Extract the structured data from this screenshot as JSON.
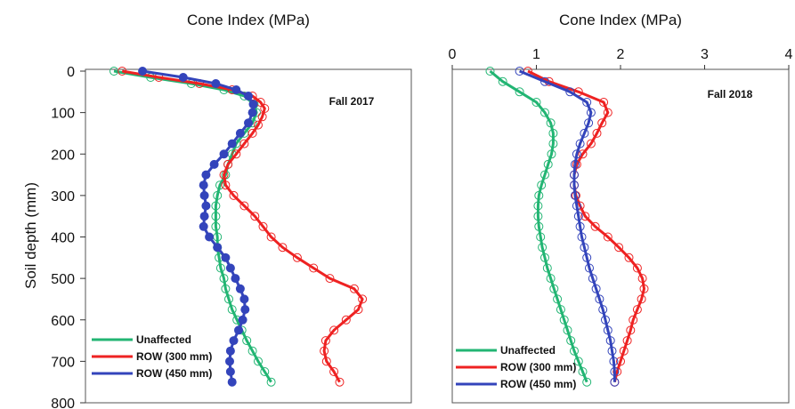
{
  "chart_data": [
    {
      "type": "line",
      "panel_label": "Fall 2017",
      "xlabel": "Cone Index (MPa)",
      "ylabel": "Soil depth (mm)",
      "y_ticks": [
        "0",
        "100",
        "200",
        "300",
        "400",
        "500",
        "600",
        "700",
        "800"
      ],
      "x_ticks": [],
      "xlim": [
        0,
        4
      ],
      "ylim": [
        0,
        800
      ],
      "y_inverted": true,
      "series": [
        {
          "name": "Unaffected",
          "color": "#22b573",
          "marker": "open-circle",
          "points": [
            [
              0.35,
              0
            ],
            [
              0.8,
              15
            ],
            [
              1.3,
              30
            ],
            [
              1.7,
              45
            ],
            [
              1.95,
              60
            ],
            [
              2.07,
              80
            ],
            [
              2.1,
              100
            ],
            [
              2.05,
              125
            ],
            [
              1.95,
              150
            ],
            [
              1.85,
              175
            ],
            [
              1.8,
              200
            ],
            [
              1.75,
              225
            ],
            [
              1.72,
              250
            ],
            [
              1.65,
              275
            ],
            [
              1.62,
              300
            ],
            [
              1.6,
              325
            ],
            [
              1.6,
              350
            ],
            [
              1.6,
              375
            ],
            [
              1.62,
              400
            ],
            [
              1.62,
              425
            ],
            [
              1.64,
              450
            ],
            [
              1.66,
              475
            ],
            [
              1.7,
              500
            ],
            [
              1.72,
              525
            ],
            [
              1.76,
              550
            ],
            [
              1.8,
              575
            ],
            [
              1.86,
              600
            ],
            [
              1.92,
              625
            ],
            [
              1.98,
              650
            ],
            [
              2.05,
              675
            ],
            [
              2.12,
              700
            ],
            [
              2.2,
              725
            ],
            [
              2.28,
              750
            ]
          ]
        },
        {
          "name": "ROW (300 mm)",
          "color": "#ee2222",
          "marker": "open-circle",
          "points": [
            [
              0.45,
              0
            ],
            [
              0.9,
              15
            ],
            [
              1.4,
              30
            ],
            [
              1.8,
              45
            ],
            [
              2.05,
              60
            ],
            [
              2.15,
              75
            ],
            [
              2.2,
              90
            ],
            [
              2.17,
              110
            ],
            [
              2.12,
              130
            ],
            [
              2.05,
              150
            ],
            [
              1.95,
              175
            ],
            [
              1.85,
              200
            ],
            [
              1.75,
              225
            ],
            [
              1.7,
              250
            ],
            [
              1.72,
              275
            ],
            [
              1.82,
              300
            ],
            [
              1.95,
              325
            ],
            [
              2.08,
              350
            ],
            [
              2.18,
              375
            ],
            [
              2.28,
              400
            ],
            [
              2.42,
              425
            ],
            [
              2.6,
              450
            ],
            [
              2.8,
              475
            ],
            [
              3.0,
              500
            ],
            [
              3.3,
              525
            ],
            [
              3.4,
              550
            ],
            [
              3.35,
              575
            ],
            [
              3.2,
              600
            ],
            [
              3.05,
              625
            ],
            [
              2.95,
              650
            ],
            [
              2.93,
              675
            ],
            [
              2.96,
              700
            ],
            [
              3.05,
              725
            ],
            [
              3.12,
              750
            ]
          ]
        },
        {
          "name": "ROW (450 mm)",
          "color": "#3344bb",
          "marker": "filled-circle",
          "points": [
            [
              0.7,
              0
            ],
            [
              1.2,
              15
            ],
            [
              1.6,
              30
            ],
            [
              1.85,
              45
            ],
            [
              2.0,
              60
            ],
            [
              2.06,
              80
            ],
            [
              2.05,
              100
            ],
            [
              2.0,
              125
            ],
            [
              1.9,
              150
            ],
            [
              1.8,
              175
            ],
            [
              1.7,
              200
            ],
            [
              1.58,
              225
            ],
            [
              1.48,
              250
            ],
            [
              1.45,
              275
            ],
            [
              1.46,
              300
            ],
            [
              1.48,
              325
            ],
            [
              1.46,
              350
            ],
            [
              1.45,
              375
            ],
            [
              1.52,
              400
            ],
            [
              1.62,
              425
            ],
            [
              1.72,
              450
            ],
            [
              1.78,
              475
            ],
            [
              1.84,
              500
            ],
            [
              1.9,
              525
            ],
            [
              1.95,
              550
            ],
            [
              1.96,
              575
            ],
            [
              1.93,
              600
            ],
            [
              1.88,
              625
            ],
            [
              1.82,
              650
            ],
            [
              1.78,
              675
            ],
            [
              1.77,
              700
            ],
            [
              1.78,
              725
            ],
            [
              1.8,
              750
            ]
          ]
        }
      ]
    },
    {
      "type": "line",
      "panel_label": "Fall 2018",
      "xlabel": "Cone Index (MPa)",
      "ylabel": "",
      "x_ticks": [
        "0",
        "1",
        "2",
        "3",
        "4"
      ],
      "y_ticks": [],
      "xlim": [
        0,
        4
      ],
      "ylim": [
        0,
        800
      ],
      "y_inverted": true,
      "series": [
        {
          "name": "Unaffected",
          "color": "#22b573",
          "marker": "open-circle",
          "points": [
            [
              0.45,
              0
            ],
            [
              0.6,
              25
            ],
            [
              0.8,
              50
            ],
            [
              1.0,
              75
            ],
            [
              1.1,
              100
            ],
            [
              1.17,
              125
            ],
            [
              1.2,
              150
            ],
            [
              1.2,
              175
            ],
            [
              1.18,
              200
            ],
            [
              1.14,
              225
            ],
            [
              1.1,
              250
            ],
            [
              1.06,
              275
            ],
            [
              1.03,
              300
            ],
            [
              1.02,
              325
            ],
            [
              1.02,
              350
            ],
            [
              1.03,
              375
            ],
            [
              1.05,
              400
            ],
            [
              1.07,
              425
            ],
            [
              1.1,
              450
            ],
            [
              1.13,
              475
            ],
            [
              1.17,
              500
            ],
            [
              1.21,
              525
            ],
            [
              1.25,
              550
            ],
            [
              1.29,
              575
            ],
            [
              1.33,
              600
            ],
            [
              1.37,
              625
            ],
            [
              1.41,
              650
            ],
            [
              1.45,
              675
            ],
            [
              1.5,
              700
            ],
            [
              1.55,
              725
            ],
            [
              1.6,
              750
            ]
          ]
        },
        {
          "name": "ROW (300 mm)",
          "color": "#ee2222",
          "marker": "open-circle",
          "points": [
            [
              0.9,
              0
            ],
            [
              1.15,
              25
            ],
            [
              1.5,
              50
            ],
            [
              1.8,
              75
            ],
            [
              1.85,
              100
            ],
            [
              1.78,
              125
            ],
            [
              1.72,
              150
            ],
            [
              1.65,
              175
            ],
            [
              1.55,
              200
            ],
            [
              1.48,
              225
            ],
            [
              1.45,
              250
            ],
            [
              1.45,
              275
            ],
            [
              1.47,
              300
            ],
            [
              1.52,
              325
            ],
            [
              1.58,
              350
            ],
            [
              1.7,
              375
            ],
            [
              1.85,
              400
            ],
            [
              1.98,
              425
            ],
            [
              2.1,
              450
            ],
            [
              2.2,
              475
            ],
            [
              2.26,
              500
            ],
            [
              2.28,
              525
            ],
            [
              2.25,
              550
            ],
            [
              2.2,
              575
            ],
            [
              2.15,
              600
            ],
            [
              2.12,
              625
            ],
            [
              2.08,
              650
            ],
            [
              2.04,
              675
            ],
            [
              2.0,
              700
            ],
            [
              1.96,
              725
            ],
            [
              1.93,
              750
            ]
          ]
        },
        {
          "name": "ROW (450 mm)",
          "color": "#3344bb",
          "marker": "open-circle",
          "points": [
            [
              0.8,
              0
            ],
            [
              1.1,
              25
            ],
            [
              1.4,
              50
            ],
            [
              1.6,
              75
            ],
            [
              1.65,
              100
            ],
            [
              1.62,
              125
            ],
            [
              1.57,
              150
            ],
            [
              1.52,
              175
            ],
            [
              1.48,
              200
            ],
            [
              1.46,
              225
            ],
            [
              1.45,
              250
            ],
            [
              1.45,
              275
            ],
            [
              1.46,
              300
            ],
            [
              1.48,
              325
            ],
            [
              1.5,
              350
            ],
            [
              1.52,
              375
            ],
            [
              1.54,
              400
            ],
            [
              1.57,
              425
            ],
            [
              1.6,
              450
            ],
            [
              1.63,
              475
            ],
            [
              1.67,
              500
            ],
            [
              1.71,
              525
            ],
            [
              1.75,
              550
            ],
            [
              1.79,
              575
            ],
            [
              1.82,
              600
            ],
            [
              1.85,
              625
            ],
            [
              1.88,
              650
            ],
            [
              1.9,
              675
            ],
            [
              1.92,
              700
            ],
            [
              1.93,
              725
            ],
            [
              1.93,
              750
            ]
          ]
        }
      ]
    }
  ]
}
